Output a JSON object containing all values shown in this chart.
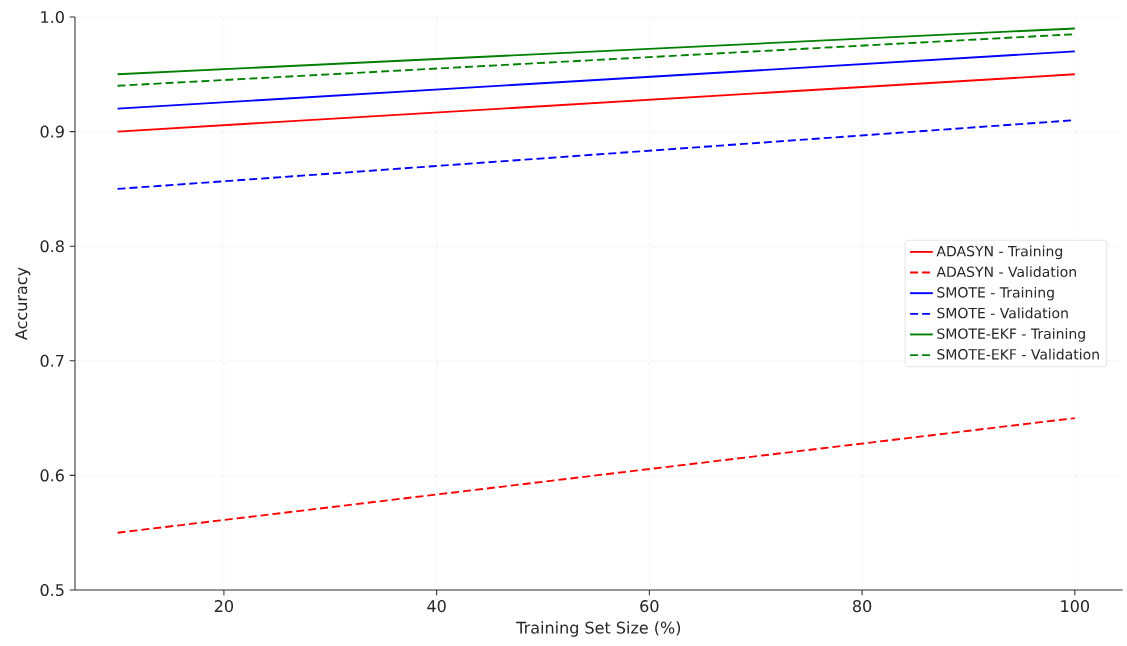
{
  "chart_data": {
    "type": "line",
    "xlabel": "Training Set Size (%)",
    "ylabel": "Accuracy",
    "x": [
      10,
      100
    ],
    "series": [
      {
        "name": "ADASYN - Training",
        "color": "#ff0000",
        "line_style": "solid",
        "values": [
          0.9,
          0.95
        ]
      },
      {
        "name": "ADASYN - Validation",
        "color": "#ff0000",
        "line_style": "dashed",
        "values": [
          0.55,
          0.65
        ]
      },
      {
        "name": "SMOTE - Training",
        "color": "#0000ff",
        "line_style": "solid",
        "values": [
          0.92,
          0.97
        ]
      },
      {
        "name": "SMOTE - Validation",
        "color": "#0000ff",
        "line_style": "dashed",
        "values": [
          0.85,
          0.91
        ]
      },
      {
        "name": "SMOTE-EKF - Training",
        "color": "#008000",
        "line_style": "solid",
        "values": [
          0.95,
          0.99
        ]
      },
      {
        "name": "SMOTE-EKF - Validation",
        "color": "#008000",
        "line_style": "dashed",
        "values": [
          0.94,
          0.985
        ]
      }
    ],
    "xlim": [
      6,
      104.5
    ],
    "ylim": [
      0.5,
      1.0
    ],
    "xticks": [
      20,
      40,
      60,
      80,
      100
    ],
    "yticks": [
      0.5,
      0.6,
      0.7,
      0.8,
      0.9,
      {
        "value": 1,
        "label": "1.0"
      }
    ],
    "grid": true,
    "legend": "right",
    "marker": "none"
  }
}
